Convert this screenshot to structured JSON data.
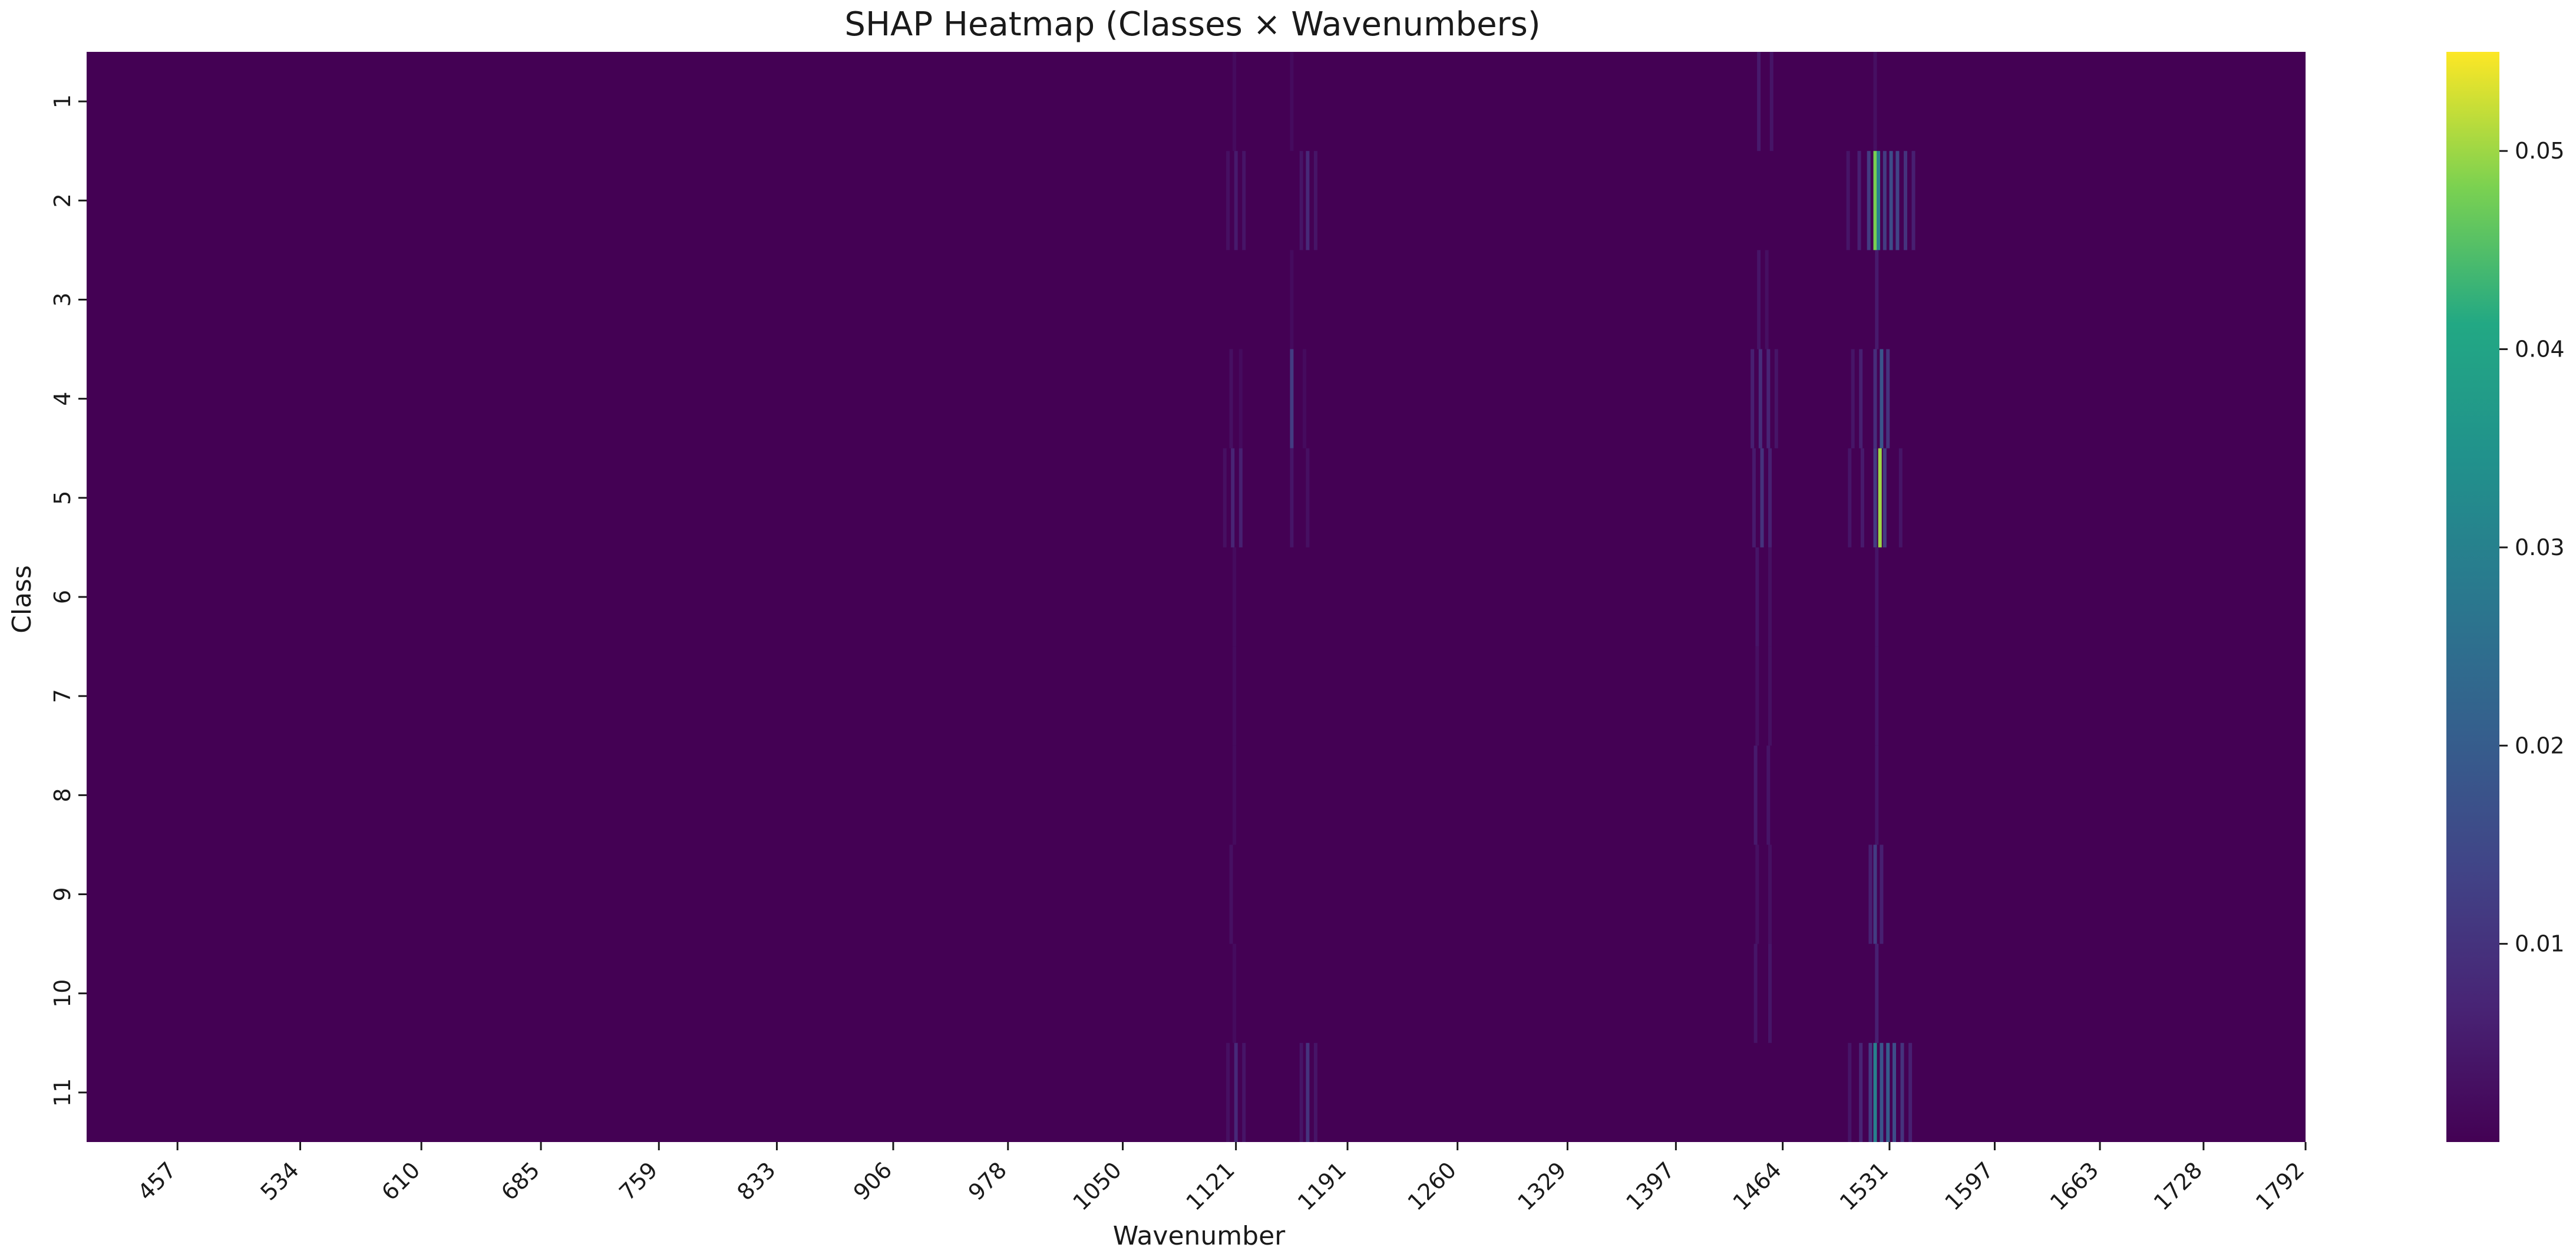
{
  "chart_data": {
    "type": "heatmap",
    "title": "SHAP Heatmap (Classes × Wavenumbers)",
    "xlabel": "Wavenumber",
    "ylabel": "Class",
    "x_tick_labels": [
      "457",
      "534",
      "610",
      "685",
      "759",
      "833",
      "906",
      "978",
      "1050",
      "1121",
      "1191",
      "1260",
      "1329",
      "1397",
      "1464",
      "1531",
      "1597",
      "1663",
      "1728",
      "1792"
    ],
    "y_categories": [
      "1",
      "2",
      "3",
      "4",
      "5",
      "6",
      "7",
      "8",
      "9",
      "10",
      "11"
    ],
    "xlim": [
      400,
      1792
    ],
    "colormap": "viridis",
    "colorbar": {
      "min": 0.0,
      "max": 0.055,
      "ticks": [
        0.01,
        0.02,
        0.03,
        0.04,
        0.05
      ],
      "tick_labels": [
        "0.01",
        "0.02",
        "0.03",
        "0.04",
        "0.05"
      ]
    },
    "background_value": 0.0,
    "bands": [
      {
        "class": "1",
        "x": 1120,
        "value": 0.002
      },
      {
        "class": "1",
        "x": 1156,
        "value": 0.002
      },
      {
        "class": "1",
        "x": 1449,
        "value": 0.005
      },
      {
        "class": "1",
        "x": 1457,
        "value": 0.004
      },
      {
        "class": "1",
        "x": 1522,
        "value": 0.003
      },
      {
        "class": "2",
        "x": 1116,
        "value": 0.003
      },
      {
        "class": "2",
        "x": 1121,
        "value": 0.005
      },
      {
        "class": "2",
        "x": 1126,
        "value": 0.004
      },
      {
        "class": "2",
        "x": 1162,
        "value": 0.004
      },
      {
        "class": "2",
        "x": 1166,
        "value": 0.008
      },
      {
        "class": "2",
        "x": 1171,
        "value": 0.004
      },
      {
        "class": "2",
        "x": 1505,
        "value": 0.004
      },
      {
        "class": "2",
        "x": 1512,
        "value": 0.006
      },
      {
        "class": "2",
        "x": 1518,
        "value": 0.012
      },
      {
        "class": "2",
        "x": 1522,
        "value": 0.048
      },
      {
        "class": "2",
        "x": 1524,
        "value": 0.03
      },
      {
        "class": "2",
        "x": 1528,
        "value": 0.012
      },
      {
        "class": "2",
        "x": 1532,
        "value": 0.016
      },
      {
        "class": "2",
        "x": 1536,
        "value": 0.014
      },
      {
        "class": "2",
        "x": 1541,
        "value": 0.01
      },
      {
        "class": "2",
        "x": 1546,
        "value": 0.006
      },
      {
        "class": "3",
        "x": 1156,
        "value": 0.002
      },
      {
        "class": "3",
        "x": 1449,
        "value": 0.004
      },
      {
        "class": "3",
        "x": 1454,
        "value": 0.003
      },
      {
        "class": "3",
        "x": 1523,
        "value": 0.005
      },
      {
        "class": "4",
        "x": 1118,
        "value": 0.003
      },
      {
        "class": "4",
        "x": 1124,
        "value": 0.002
      },
      {
        "class": "4",
        "x": 1156,
        "value": 0.012
      },
      {
        "class": "4",
        "x": 1164,
        "value": 0.002
      },
      {
        "class": "4",
        "x": 1445,
        "value": 0.006
      },
      {
        "class": "4",
        "x": 1450,
        "value": 0.009
      },
      {
        "class": "4",
        "x": 1455,
        "value": 0.007
      },
      {
        "class": "4",
        "x": 1460,
        "value": 0.004
      },
      {
        "class": "4",
        "x": 1508,
        "value": 0.004
      },
      {
        "class": "4",
        "x": 1513,
        "value": 0.006
      },
      {
        "class": "4",
        "x": 1522,
        "value": 0.009
      },
      {
        "class": "4",
        "x": 1526,
        "value": 0.018
      },
      {
        "class": "4",
        "x": 1530,
        "value": 0.01
      },
      {
        "class": "5",
        "x": 1114,
        "value": 0.003
      },
      {
        "class": "5",
        "x": 1119,
        "value": 0.007
      },
      {
        "class": "5",
        "x": 1124,
        "value": 0.006
      },
      {
        "class": "5",
        "x": 1156,
        "value": 0.004
      },
      {
        "class": "5",
        "x": 1166,
        "value": 0.003
      },
      {
        "class": "5",
        "x": 1446,
        "value": 0.005
      },
      {
        "class": "5",
        "x": 1451,
        "value": 0.01
      },
      {
        "class": "5",
        "x": 1456,
        "value": 0.006
      },
      {
        "class": "5",
        "x": 1506,
        "value": 0.004
      },
      {
        "class": "5",
        "x": 1514,
        "value": 0.005
      },
      {
        "class": "5",
        "x": 1522,
        "value": 0.012
      },
      {
        "class": "5",
        "x": 1525,
        "value": 0.05
      },
      {
        "class": "5",
        "x": 1528,
        "value": 0.012
      },
      {
        "class": "5",
        "x": 1538,
        "value": 0.004
      },
      {
        "class": "6",
        "x": 1120,
        "value": 0.002
      },
      {
        "class": "6",
        "x": 1448,
        "value": 0.004
      },
      {
        "class": "6",
        "x": 1456,
        "value": 0.003
      },
      {
        "class": "6",
        "x": 1523,
        "value": 0.004
      },
      {
        "class": "7",
        "x": 1120,
        "value": 0.002
      },
      {
        "class": "7",
        "x": 1448,
        "value": 0.003
      },
      {
        "class": "7",
        "x": 1456,
        "value": 0.003
      },
      {
        "class": "7",
        "x": 1523,
        "value": 0.004
      },
      {
        "class": "8",
        "x": 1120,
        "value": 0.002
      },
      {
        "class": "8",
        "x": 1447,
        "value": 0.005
      },
      {
        "class": "8",
        "x": 1455,
        "value": 0.004
      },
      {
        "class": "8",
        "x": 1523,
        "value": 0.004
      },
      {
        "class": "9",
        "x": 1118,
        "value": 0.003
      },
      {
        "class": "9",
        "x": 1448,
        "value": 0.003
      },
      {
        "class": "9",
        "x": 1456,
        "value": 0.003
      },
      {
        "class": "9",
        "x": 1519,
        "value": 0.006
      },
      {
        "class": "9",
        "x": 1522,
        "value": 0.012
      },
      {
        "class": "9",
        "x": 1526,
        "value": 0.006
      },
      {
        "class": "10",
        "x": 1120,
        "value": 0.002
      },
      {
        "class": "10",
        "x": 1447,
        "value": 0.004
      },
      {
        "class": "10",
        "x": 1456,
        "value": 0.004
      },
      {
        "class": "10",
        "x": 1523,
        "value": 0.006
      },
      {
        "class": "11",
        "x": 1116,
        "value": 0.003
      },
      {
        "class": "11",
        "x": 1121,
        "value": 0.008
      },
      {
        "class": "11",
        "x": 1126,
        "value": 0.004
      },
      {
        "class": "11",
        "x": 1162,
        "value": 0.004
      },
      {
        "class": "11",
        "x": 1166,
        "value": 0.01
      },
      {
        "class": "11",
        "x": 1171,
        "value": 0.004
      },
      {
        "class": "11",
        "x": 1506,
        "value": 0.004
      },
      {
        "class": "11",
        "x": 1513,
        "value": 0.007
      },
      {
        "class": "11",
        "x": 1519,
        "value": 0.012
      },
      {
        "class": "11",
        "x": 1522,
        "value": 0.03
      },
      {
        "class": "11",
        "x": 1526,
        "value": 0.018
      },
      {
        "class": "11",
        "x": 1530,
        "value": 0.02
      },
      {
        "class": "11",
        "x": 1534,
        "value": 0.016
      },
      {
        "class": "11",
        "x": 1539,
        "value": 0.01
      },
      {
        "class": "11",
        "x": 1544,
        "value": 0.006
      }
    ]
  }
}
